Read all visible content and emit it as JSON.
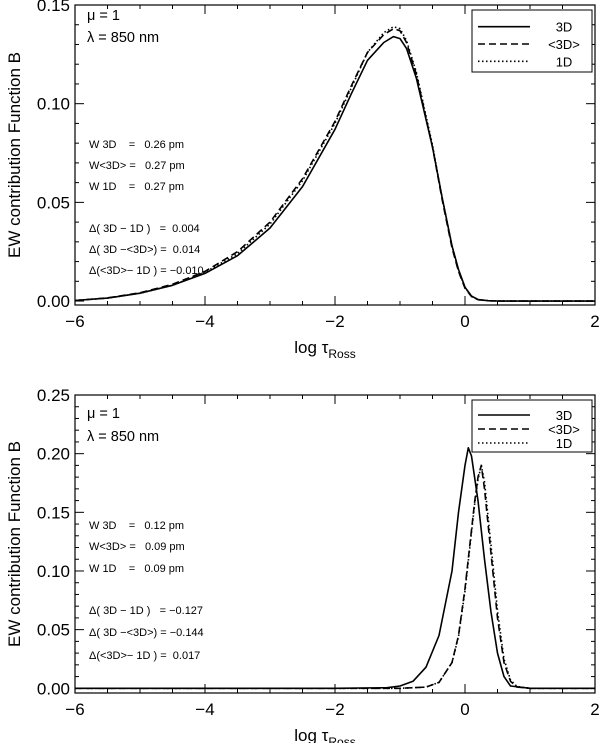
{
  "chart_data": [
    {
      "type": "line",
      "xlabel": "log τ",
      "xlabel_sub": "Ross",
      "ylabel": "EW contribution Function B",
      "xlim": [
        -6,
        2
      ],
      "ylim": [
        -0.002,
        0.15
      ],
      "xticks": [
        -6,
        -4,
        -2,
        0,
        2
      ],
      "xtick_labels": [
        "−6",
        "−4",
        "−2",
        "0",
        "2"
      ],
      "yticks": [
        0.0,
        0.05,
        0.1,
        0.15
      ],
      "ytick_labels": [
        "0.00",
        "0.05",
        "0.10",
        "0.15"
      ],
      "legend_position": "top-right",
      "annotations": {
        "mu": "μ = 1",
        "lambda": "λ = 850 nm",
        "widths": [
          "W 3D    =   0.26 pm",
          "W<3D> =   0.27 pm",
          "W 1D    =   0.27 pm"
        ],
        "deltas": [
          "Δ( 3D − 1D )   =  0.004",
          "Δ( 3D −<3D>) =  0.014",
          "Δ(<3D>− 1D ) = −0.010"
        ]
      },
      "series": [
        {
          "name": "3D",
          "dash": "solid",
          "x": [
            -6,
            -5.5,
            -5,
            -4.5,
            -4,
            -3.5,
            -3,
            -2.5,
            -2,
            -1.75,
            -1.5,
            -1.25,
            -1.1,
            -1,
            -0.9,
            -0.75,
            -0.5,
            -0.35,
            -0.2,
            -0.1,
            0,
            0.1,
            0.2,
            0.35,
            0.5,
            0.7,
            1,
            1.5,
            2
          ],
          "y": [
            0.0003,
            0.0015,
            0.004,
            0.008,
            0.014,
            0.023,
            0.037,
            0.058,
            0.087,
            0.105,
            0.122,
            0.131,
            0.134,
            0.133,
            0.128,
            0.113,
            0.078,
            0.052,
            0.028,
            0.016,
            0.007,
            0.0025,
            0.0008,
            0.0002,
            5e-05,
            0,
            0,
            0,
            0
          ]
        },
        {
          "name": "<3D>",
          "dash": "dashed",
          "x": [
            -6,
            -5.5,
            -5,
            -4.5,
            -4,
            -3.5,
            -3,
            -2.5,
            -2,
            -1.75,
            -1.5,
            -1.25,
            -1.1,
            -1,
            -0.9,
            -0.75,
            -0.5,
            -0.35,
            -0.2,
            -0.1,
            0,
            0.1,
            0.2,
            0.35,
            0.5,
            0.7,
            1,
            1.5,
            2
          ],
          "y": [
            0.0003,
            0.0016,
            0.0042,
            0.0085,
            0.015,
            0.025,
            0.04,
            0.062,
            0.091,
            0.109,
            0.126,
            0.135,
            0.138,
            0.137,
            0.131,
            0.115,
            0.078,
            0.051,
            0.027,
            0.015,
            0.0065,
            0.0023,
            0.0007,
            0.0002,
            5e-05,
            0,
            0,
            0,
            0
          ]
        },
        {
          "name": "1D",
          "dash": "dotted",
          "x": [
            -6,
            -5.5,
            -5,
            -4.5,
            -4,
            -3.5,
            -3,
            -2.5,
            -2,
            -1.75,
            -1.5,
            -1.25,
            -1.1,
            -1,
            -0.9,
            -0.75,
            -0.5,
            -0.35,
            -0.2,
            -0.1,
            0,
            0.1,
            0.2,
            0.35,
            0.5,
            0.7,
            1,
            1.5,
            2
          ],
          "y": [
            0.0003,
            0.0015,
            0.004,
            0.008,
            0.0145,
            0.024,
            0.039,
            0.061,
            0.09,
            0.108,
            0.126,
            0.136,
            0.139,
            0.138,
            0.132,
            0.116,
            0.079,
            0.052,
            0.028,
            0.0155,
            0.0068,
            0.0024,
            0.0007,
            0.0002,
            5e-05,
            0,
            0,
            0,
            0
          ]
        }
      ]
    },
    {
      "type": "line",
      "xlabel": "log τ",
      "xlabel_sub": "Ross",
      "ylabel": "EW contribution Function B",
      "xlim": [
        -6,
        2
      ],
      "ylim": [
        -0.004,
        0.25
      ],
      "xticks": [
        -6,
        -4,
        -2,
        0,
        2
      ],
      "xtick_labels": [
        "−6",
        "−4",
        "−2",
        "0",
        "2"
      ],
      "yticks": [
        0.0,
        0.05,
        0.1,
        0.15,
        0.2,
        0.25
      ],
      "ytick_labels": [
        "0.00",
        "0.05",
        "0.10",
        "0.15",
        "0.20",
        "0.25"
      ],
      "legend_position": "top-right",
      "annotations": {
        "mu": "μ = 1",
        "lambda": "λ = 850 nm",
        "widths": [
          "W 3D    =   0.12 pm",
          "W<3D> =   0.09 pm",
          "W 1D    =   0.09 pm"
        ],
        "deltas": [
          "Δ( 3D − 1D )   = −0.127",
          "Δ( 3D −<3D>) = −0.144",
          "Δ(<3D>− 1D ) =  0.017"
        ]
      },
      "series": [
        {
          "name": "3D",
          "dash": "solid",
          "x": [
            -6,
            -2,
            -1.2,
            -1.0,
            -0.8,
            -0.6,
            -0.4,
            -0.2,
            -0.1,
            0.0,
            0.05,
            0.1,
            0.2,
            0.3,
            0.4,
            0.5,
            0.6,
            0.7,
            1,
            2
          ],
          "y": [
            0,
            0,
            0.0005,
            0.002,
            0.006,
            0.018,
            0.045,
            0.1,
            0.15,
            0.19,
            0.205,
            0.198,
            0.16,
            0.11,
            0.065,
            0.03,
            0.01,
            0.002,
            0,
            0
          ]
        },
        {
          "name": "<3D>",
          "dash": "dashed",
          "x": [
            -6,
            -1,
            -0.6,
            -0.4,
            -0.2,
            -0.1,
            0.0,
            0.1,
            0.15,
            0.2,
            0.25,
            0.3,
            0.4,
            0.5,
            0.6,
            0.7,
            0.8,
            1,
            2
          ],
          "y": [
            0,
            0,
            0.001,
            0.005,
            0.022,
            0.045,
            0.085,
            0.135,
            0.16,
            0.18,
            0.19,
            0.17,
            0.115,
            0.06,
            0.022,
            0.006,
            0.001,
            0,
            0
          ]
        },
        {
          "name": "1D",
          "dash": "dotted",
          "x": [
            -6,
            -1,
            -0.6,
            -0.4,
            -0.2,
            -0.1,
            0.0,
            0.1,
            0.15,
            0.2,
            0.25,
            0.3,
            0.4,
            0.5,
            0.6,
            0.7,
            0.8,
            1,
            2
          ],
          "y": [
            0,
            0,
            0.001,
            0.005,
            0.022,
            0.044,
            0.083,
            0.133,
            0.158,
            0.178,
            0.19,
            0.176,
            0.122,
            0.066,
            0.025,
            0.007,
            0.0015,
            0,
            0
          ]
        }
      ]
    }
  ]
}
